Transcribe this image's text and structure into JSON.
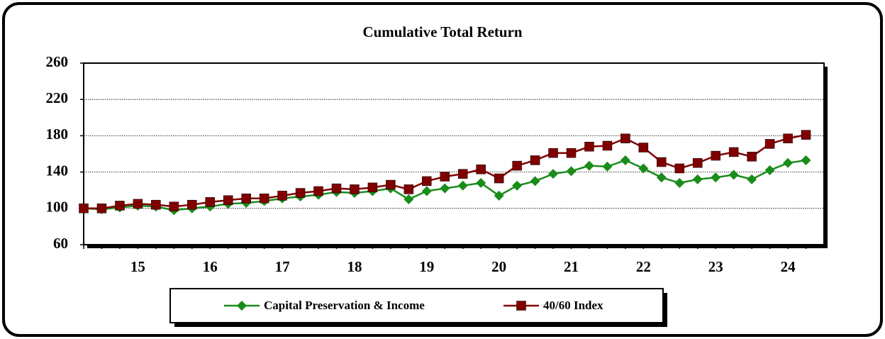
{
  "chart_data": {
    "type": "line",
    "title": "Cumulative Total Return",
    "categories": [
      null,
      null,
      null,
      "15",
      null,
      null,
      null,
      "16",
      null,
      null,
      null,
      "17",
      null,
      null,
      null,
      "18",
      null,
      null,
      null,
      "19",
      null,
      null,
      null,
      "20",
      null,
      null,
      null,
      "21",
      null,
      null,
      null,
      "22",
      null,
      null,
      null,
      "23",
      null,
      null,
      null,
      "24",
      null
    ],
    "series": [
      {
        "name": "Capital Preservation & Income",
        "color": "#1a8c1a",
        "marker": "diamond",
        "values": [
          100,
          99,
          101,
          103,
          102,
          98,
          100,
          102,
          105,
          106,
          108,
          111,
          113,
          115,
          118,
          117,
          119,
          122,
          110,
          119,
          122,
          125,
          128,
          114,
          125,
          130,
          138,
          141,
          147,
          146,
          153,
          144,
          134,
          128,
          132,
          134,
          137,
          132,
          142,
          150,
          153
        ]
      },
      {
        "name": "40/60 Index",
        "color": "#800000",
        "marker": "square",
        "values": [
          100,
          100,
          103,
          105,
          104,
          102,
          104,
          107,
          109,
          111,
          111,
          114,
          117,
          119,
          122,
          121,
          123,
          126,
          121,
          130,
          135,
          138,
          143,
          133,
          147,
          153,
          161,
          161,
          168,
          169,
          177,
          167,
          151,
          144,
          150,
          158,
          162,
          157,
          171,
          177,
          181
        ]
      }
    ],
    "ylim": [
      60,
      260
    ],
    "yticks": [
      60,
      100,
      140,
      180,
      220,
      260
    ],
    "grid": true
  }
}
